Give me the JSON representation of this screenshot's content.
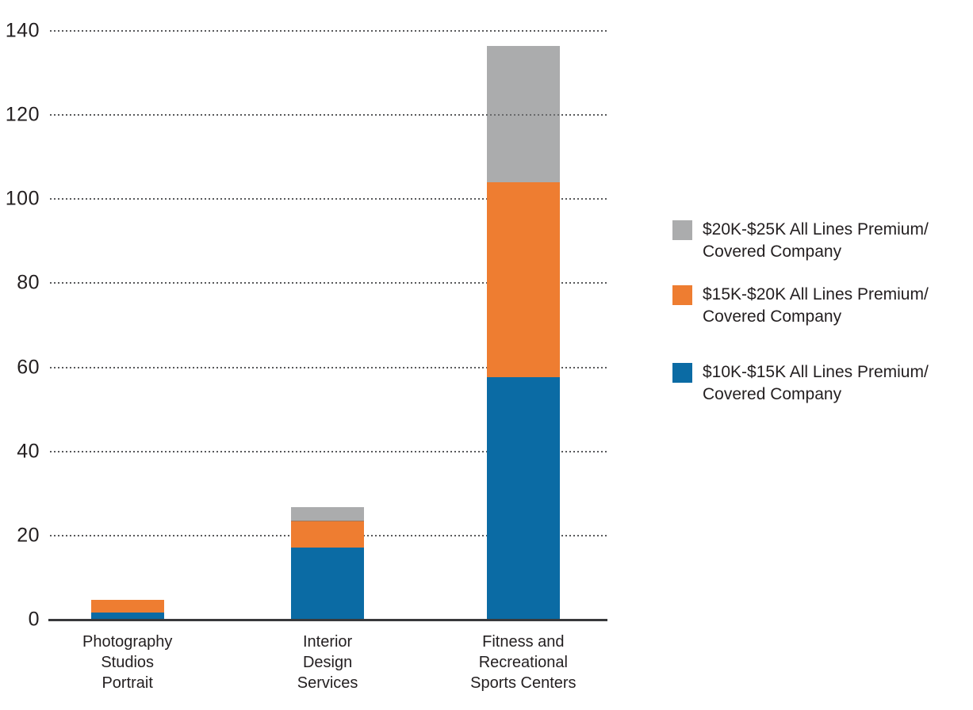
{
  "chart_data": {
    "type": "bar",
    "stacked": true,
    "title": "",
    "xlabel": "",
    "ylabel": "",
    "ylim": [
      0,
      140
    ],
    "yticks": [
      0,
      20,
      40,
      60,
      80,
      100,
      120,
      140
    ],
    "grid": "dotted-horizontal",
    "legend_position": "right",
    "categories": [
      "Photography Studios Portrait",
      "Interior Design Services",
      "Fitness and Recreational Sports Centers"
    ],
    "category_lines": [
      [
        "Photography",
        "Studios",
        "Portrait"
      ],
      [
        "Interior",
        "Design",
        "Services"
      ],
      [
        "Fitness and",
        "Recreational",
        "Sports Centers"
      ]
    ],
    "series": [
      {
        "name": "$10K-$15K All Lines Premium/Covered Company",
        "color": "#0B6BA4",
        "fill": "#0B6BA4",
        "values": [
          1.8,
          17.3,
          57.7
        ]
      },
      {
        "name": "$15K-$20K All Lines Premium/Covered Company",
        "color": "#EE7D31",
        "fill": "#EE7D31",
        "values": [
          2.9,
          6.2,
          46.4
        ]
      },
      {
        "name": "$20K-$25K All Lines Premium/Covered Company",
        "color": "#ABABAD",
        "fill": "rgba(115,117,119,0.6)",
        "values": [
          0,
          3.2,
          32.4
        ]
      }
    ]
  },
  "legend": {
    "items": [
      {
        "line1": "$20K-$25K All Lines Premium/",
        "line2": "Covered Company",
        "color": "#ABABAD",
        "fill": "rgba(115,117,119,0.6)"
      },
      {
        "line1": "$15K-$20K All Lines Premium/",
        "line2": "Covered Company",
        "color": "#EE7D31",
        "fill": "#EE7D31"
      },
      {
        "line1": "$10K-$15K All Lines Premium/",
        "line2": "Covered Company",
        "color": "#0B6BA4",
        "fill": "#0B6BA4"
      }
    ]
  },
  "colors": {
    "background": "#FFFFFF",
    "gridline": "#58595B",
    "axis_line": "#38393B",
    "text": "#231F20"
  }
}
